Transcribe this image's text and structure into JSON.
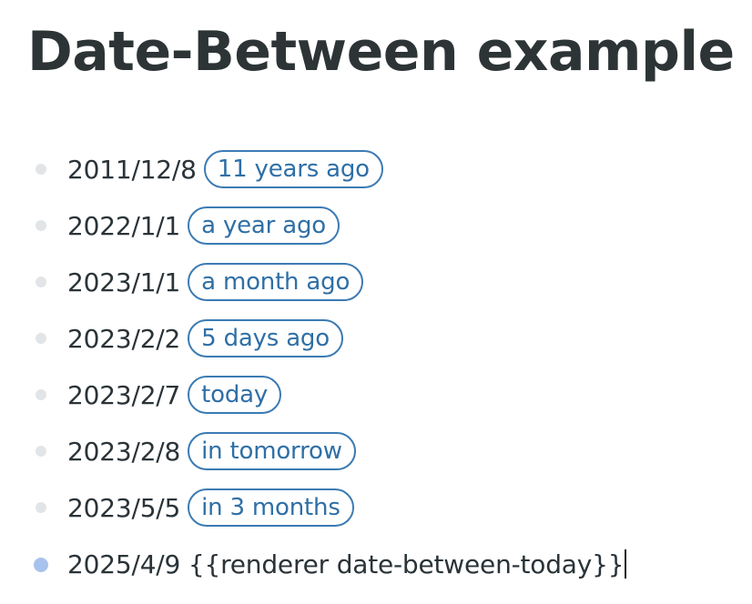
{
  "page": {
    "title": "Date-Between example"
  },
  "blocks": [
    {
      "date": "2011/12/8",
      "badge": "11 years ago"
    },
    {
      "date": "2022/1/1",
      "badge": "a year ago"
    },
    {
      "date": "2023/1/1",
      "badge": "a month ago"
    },
    {
      "date": "2023/2/2",
      "badge": "5 days ago"
    },
    {
      "date": "2023/2/7",
      "badge": "today"
    },
    {
      "date": "2023/2/8",
      "badge": "in tomorrow"
    },
    {
      "date": "2023/5/5",
      "badge": "in 3 months"
    }
  ],
  "editing_block": {
    "date": "2025/4/9",
    "raw": "{{renderer date-between-today}}"
  },
  "colors": {
    "title": "#2d3436",
    "text": "#2a3338",
    "badge_border": "#3b7bb3",
    "badge_text": "#2f6fa6",
    "bullet": "#e2e5e7",
    "bullet_active": "#a8c2ee"
  }
}
